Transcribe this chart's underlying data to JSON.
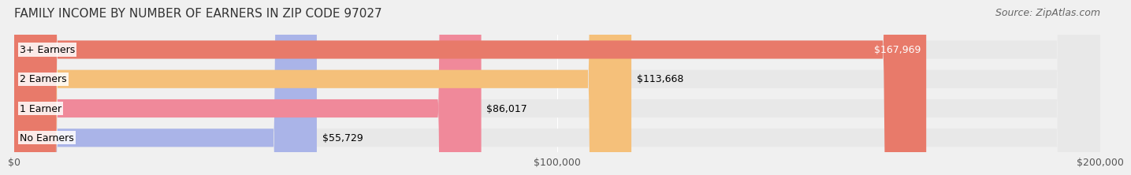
{
  "title": "FAMILY INCOME BY NUMBER OF EARNERS IN ZIP CODE 97027",
  "source": "Source: ZipAtlas.com",
  "categories": [
    "No Earners",
    "1 Earner",
    "2 Earners",
    "3+ Earners"
  ],
  "values": [
    55729,
    86017,
    113668,
    167969
  ],
  "bar_colors": [
    "#aab4e8",
    "#f0899a",
    "#f5c07a",
    "#e87a6a"
  ],
  "bar_edge_colors": [
    "#9099cc",
    "#d9687a",
    "#e5a855",
    "#d45a50"
  ],
  "value_labels": [
    "$55,729",
    "$86,017",
    "$113,668",
    "$167,969"
  ],
  "xlim": [
    0,
    200000
  ],
  "xticks": [
    0,
    100000,
    200000
  ],
  "xtick_labels": [
    "$0",
    "$100,000",
    "$200,000"
  ],
  "background_color": "#f0f0f0",
  "bar_background_color": "#e8e8e8",
  "title_fontsize": 11,
  "source_fontsize": 9,
  "label_fontsize": 9,
  "value_fontsize": 9,
  "tick_fontsize": 9
}
